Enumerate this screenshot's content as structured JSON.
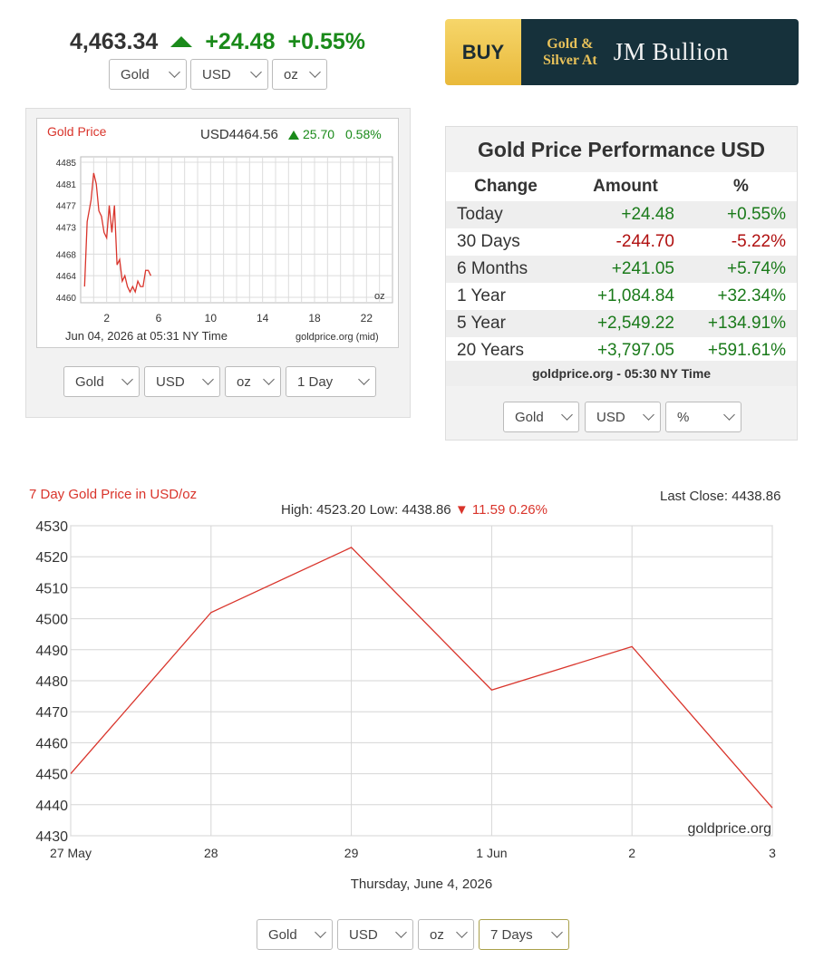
{
  "ticker": {
    "price": "4,463.34",
    "change": "+24.48",
    "percent": "+0.55%",
    "arrow_icon": "triangle-up-icon",
    "color": "#1a8a1a"
  },
  "top_selects": {
    "metal": "Gold",
    "currency": "USD",
    "unit": "oz"
  },
  "banner": {
    "buy": "BUY",
    "line1": "Gold &",
    "line2": "Silver At",
    "brand": "JM Bullion"
  },
  "day_chart": {
    "title": "Gold Price",
    "quote": "USD4464.56",
    "change": "25.70",
    "percent": "0.58%",
    "unit": "oz",
    "footer_time": "Jun 04, 2026 at 05:31 NY Time",
    "footer_source": "goldprice.org (mid)",
    "selects": {
      "metal": "Gold",
      "currency": "USD",
      "unit": "oz",
      "range": "1 Day"
    }
  },
  "performance": {
    "title": "Gold Price Performance USD",
    "headers": [
      "Change",
      "Amount",
      "%"
    ],
    "rows": [
      {
        "label": "Today",
        "amount": "+24.48",
        "pct": "+0.55%",
        "dir": "pos"
      },
      {
        "label": "30 Days",
        "amount": "-244.70",
        "pct": "-5.22%",
        "dir": "neg"
      },
      {
        "label": "6 Months",
        "amount": "+241.05",
        "pct": "+5.74%",
        "dir": "pos"
      },
      {
        "label": "1 Year",
        "amount": "+1,084.84",
        "pct": "+32.34%",
        "dir": "pos"
      },
      {
        "label": "5 Year",
        "amount": "+2,549.22",
        "pct": "+134.91%",
        "dir": "pos"
      },
      {
        "label": "20 Years",
        "amount": "+3,797.05",
        "pct": "+591.61%",
        "dir": "pos"
      }
    ],
    "footer": "goldprice.org - 05:30 NY Time",
    "selects": {
      "metal": "Gold",
      "currency": "USD",
      "mode": "%"
    }
  },
  "week_chart": {
    "title": "7 Day Gold Price in USD/oz",
    "last_close": "Last Close: 4438.86",
    "high_low": "High: 4523.20 Low: 4438.86",
    "change": "11.59 0.26%",
    "date": "Thursday, June 4, 2026",
    "source": "goldprice.org",
    "selects": {
      "metal": "Gold",
      "currency": "USD",
      "unit": "oz",
      "range": "7 Days"
    }
  },
  "chart_data": [
    {
      "type": "line",
      "title": "Gold Price",
      "x_ticks": [
        2,
        6,
        10,
        14,
        18,
        22
      ],
      "y_ticks": [
        4460,
        4464,
        4468,
        4473,
        4477,
        4481,
        4485
      ],
      "xlim": [
        0,
        24
      ],
      "ylim": [
        4459,
        4486
      ],
      "grid": true,
      "color": "#d9342b",
      "x": [
        0.3,
        0.5,
        0.8,
        1.0,
        1.2,
        1.4,
        1.6,
        1.8,
        2.0,
        2.2,
        2.4,
        2.6,
        2.8,
        3.0,
        3.2,
        3.4,
        3.6,
        3.8,
        4.0,
        4.2,
        4.4,
        4.6,
        4.8,
        5.0,
        5.2,
        5.4
      ],
      "y": [
        4462,
        4474,
        4478,
        4483,
        4481,
        4476,
        4475,
        4472,
        4471,
        4477,
        4472,
        4477,
        4466,
        4467,
        4463,
        4464,
        4462,
        4461,
        4462,
        4461,
        4463,
        4462,
        4462,
        4465,
        4465,
        4464
      ]
    },
    {
      "type": "line",
      "title": "7 Day Gold Price in USD/oz",
      "categories": [
        "27 May",
        "28",
        "29",
        "1 Jun",
        "2",
        "3"
      ],
      "x": [
        0,
        1,
        2,
        3,
        4,
        5
      ],
      "y": [
        4450,
        4502,
        4523,
        4477,
        4491,
        4439
      ],
      "y_ticks": [
        4430,
        4440,
        4450,
        4460,
        4470,
        4480,
        4490,
        4500,
        4510,
        4520,
        4530
      ],
      "ylim": [
        4430,
        4530
      ],
      "grid": true,
      "color": "#d9342b"
    }
  ]
}
